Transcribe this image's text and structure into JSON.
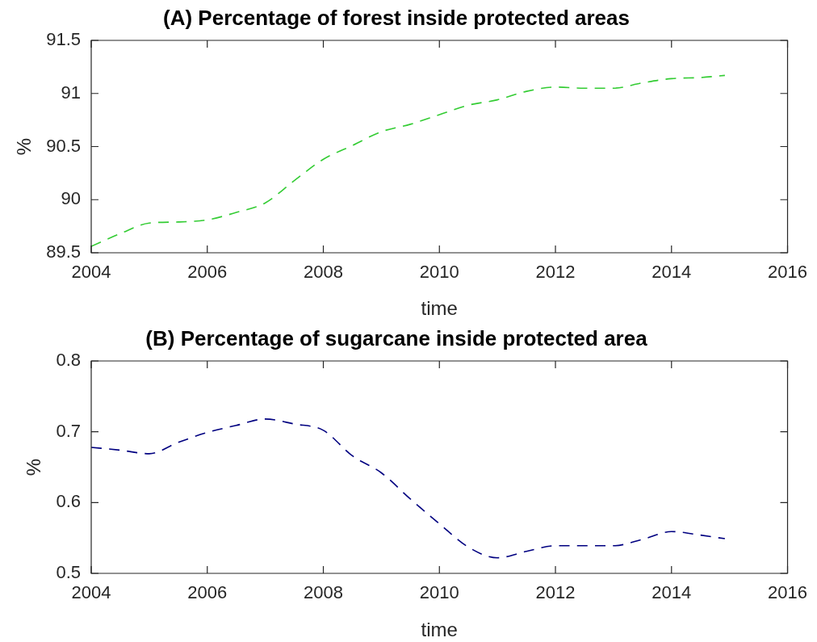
{
  "chart_data": [
    {
      "type": "line",
      "title": "(A) Percentage of forest inside protected areas",
      "xlabel": "time",
      "ylabel": "%",
      "x": [
        2004,
        2004.5,
        2005,
        2005.5,
        2006,
        2006.5,
        2007,
        2007.5,
        2008,
        2008.5,
        2009,
        2009.5,
        2010,
        2010.5,
        2011,
        2011.5,
        2012,
        2012.5,
        2013,
        2013.5,
        2014,
        2014.5,
        2014.92
      ],
      "series": [
        {
          "color": "#33cc33",
          "values": [
            89.56,
            89.68,
            89.78,
            89.79,
            89.81,
            89.88,
            89.97,
            90.18,
            90.38,
            90.51,
            90.64,
            90.71,
            90.8,
            90.89,
            90.94,
            91.02,
            91.06,
            91.05,
            91.05,
            91.1,
            91.14,
            91.15,
            91.17
          ]
        }
      ],
      "xlim": [
        2004,
        2016
      ],
      "xticks": [
        2004,
        2006,
        2008,
        2010,
        2012,
        2014,
        2016
      ],
      "ylim": [
        89.5,
        91.5
      ],
      "yticks": [
        89.5,
        90,
        90.5,
        91,
        91.5
      ],
      "marker": "none",
      "line_style": "dashed"
    },
    {
      "type": "line",
      "title": "(B) Percentage of sugarcane inside protected area",
      "xlabel": "time",
      "ylabel": "%",
      "x": [
        2004,
        2004.5,
        2005,
        2005.5,
        2006,
        2006.5,
        2007,
        2007.5,
        2008,
        2008.5,
        2009,
        2009.5,
        2010,
        2010.5,
        2011,
        2011.5,
        2012,
        2012.5,
        2013,
        2013.5,
        2014,
        2014.5,
        2014.92
      ],
      "series": [
        {
          "color": "#000080",
          "values": [
            0.678,
            0.674,
            0.669,
            0.685,
            0.699,
            0.709,
            0.718,
            0.711,
            0.702,
            0.666,
            0.642,
            0.605,
            0.57,
            0.537,
            0.522,
            0.531,
            0.539,
            0.539,
            0.539,
            0.548,
            0.559,
            0.554,
            0.549
          ]
        }
      ],
      "xlim": [
        2004,
        2016
      ],
      "xticks": [
        2004,
        2006,
        2008,
        2010,
        2012,
        2014,
        2016
      ],
      "ylim": [
        0.5,
        0.8
      ],
      "yticks": [
        0.5,
        0.6,
        0.7,
        0.8
      ],
      "marker": "none",
      "line_style": "dashed"
    }
  ]
}
